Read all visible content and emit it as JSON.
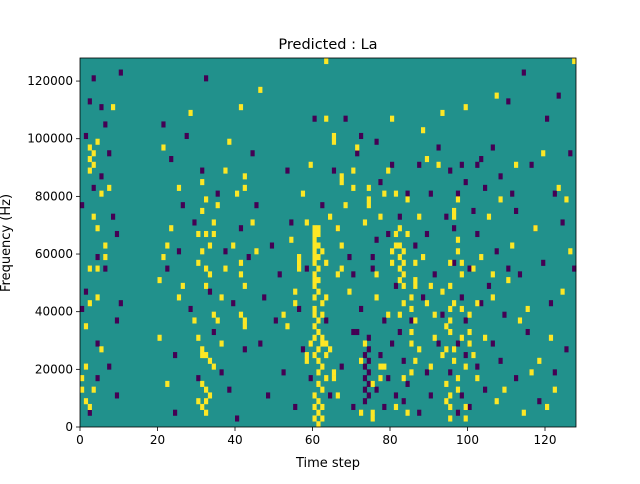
{
  "chart_data": {
    "type": "heatmap",
    "title": "Predicted : La",
    "xlabel": "Time step",
    "ylabel": "Frequency (Hz)",
    "xlim": [
      0,
      128
    ],
    "ylim": [
      0,
      128000
    ],
    "xticks": [
      0,
      20,
      40,
      60,
      80,
      100,
      120
    ],
    "yticks": [
      0,
      20000,
      40000,
      60000,
      80000,
      100000,
      120000
    ],
    "xtick_labels": [
      "0",
      "20",
      "40",
      "60",
      "80",
      "100",
      "120"
    ],
    "ytick_labels": [
      "0",
      "20000",
      "40000",
      "60000",
      "80000",
      "100000",
      "120000"
    ],
    "n_time_steps": 128,
    "n_freq_bins": 64,
    "value_levels": [
      -1,
      0,
      1
    ],
    "colors": {
      "background": "#21918c",
      "low": "#440154",
      "high": "#fde725"
    },
    "grid": false,
    "legend": "none",
    "cells_high": [
      [
        0,
        6
      ],
      [
        0,
        8
      ],
      [
        1,
        4
      ],
      [
        1,
        10
      ],
      [
        1,
        17
      ],
      [
        2,
        3
      ],
      [
        2,
        21
      ],
      [
        2,
        27
      ],
      [
        2,
        44
      ],
      [
        2,
        46
      ],
      [
        2,
        48
      ],
      [
        3,
        6
      ],
      [
        3,
        36
      ],
      [
        3,
        45
      ],
      [
        3,
        47
      ],
      [
        4,
        22
      ],
      [
        4,
        27
      ],
      [
        4,
        34
      ],
      [
        4,
        49
      ],
      [
        5,
        13
      ],
      [
        5,
        40
      ],
      [
        6,
        29
      ],
      [
        6,
        31
      ],
      [
        7,
        41
      ],
      [
        8,
        55
      ],
      [
        20,
        15
      ],
      [
        20,
        25
      ],
      [
        21,
        29
      ],
      [
        21,
        48
      ],
      [
        22,
        7
      ],
      [
        22,
        31
      ],
      [
        23,
        34
      ],
      [
        25,
        22
      ],
      [
        25,
        41
      ],
      [
        26,
        24
      ],
      [
        28,
        54
      ],
      [
        29,
        18
      ],
      [
        30,
        15
      ],
      [
        30,
        4
      ],
      [
        30,
        28
      ],
      [
        30,
        33
      ],
      [
        31,
        3
      ],
      [
        31,
        7
      ],
      [
        31,
        12
      ],
      [
        31,
        13
      ],
      [
        31,
        30
      ],
      [
        31,
        37
      ],
      [
        31,
        42
      ],
      [
        32,
        2
      ],
      [
        32,
        4
      ],
      [
        32,
        6
      ],
      [
        32,
        12
      ],
      [
        32,
        24
      ],
      [
        32,
        27
      ],
      [
        32,
        33
      ],
      [
        32,
        39
      ],
      [
        33,
        5
      ],
      [
        33,
        11
      ],
      [
        33,
        26
      ],
      [
        33,
        31
      ],
      [
        34,
        10
      ],
      [
        34,
        19
      ],
      [
        34,
        33
      ],
      [
        34,
        35
      ],
      [
        35,
        18
      ],
      [
        35,
        38
      ],
      [
        36,
        14
      ],
      [
        36,
        22
      ],
      [
        37,
        27
      ],
      [
        37,
        44
      ],
      [
        38,
        49
      ],
      [
        39,
        31
      ],
      [
        40,
        40
      ],
      [
        41,
        19
      ],
      [
        41,
        26
      ],
      [
        41,
        28
      ],
      [
        41,
        55
      ],
      [
        42,
        17
      ],
      [
        42,
        18
      ],
      [
        42,
        24
      ],
      [
        42,
        41
      ],
      [
        42,
        43
      ],
      [
        44,
        35
      ],
      [
        45,
        30
      ],
      [
        46,
        58
      ],
      [
        52,
        19
      ],
      [
        53,
        17
      ],
      [
        54,
        32
      ],
      [
        55,
        21
      ],
      [
        55,
        23
      ],
      [
        56,
        27
      ],
      [
        56,
        28
      ],
      [
        56,
        29
      ],
      [
        57,
        40
      ],
      [
        58,
        11
      ],
      [
        58,
        12
      ],
      [
        58,
        35
      ],
      [
        59,
        14
      ],
      [
        59,
        45
      ],
      [
        60,
        1
      ],
      [
        60,
        3
      ],
      [
        60,
        5
      ],
      [
        60,
        12
      ],
      [
        60,
        15
      ],
      [
        60,
        17
      ],
      [
        60,
        19
      ],
      [
        60,
        20
      ],
      [
        60,
        22
      ],
      [
        60,
        24
      ],
      [
        60,
        25
      ],
      [
        60,
        26
      ],
      [
        60,
        28
      ],
      [
        60,
        29
      ],
      [
        60,
        30
      ],
      [
        60,
        31
      ],
      [
        60,
        32
      ],
      [
        60,
        33
      ],
      [
        60,
        34
      ],
      [
        61,
        0
      ],
      [
        61,
        2
      ],
      [
        61,
        4
      ],
      [
        61,
        7
      ],
      [
        61,
        9
      ],
      [
        61,
        11
      ],
      [
        61,
        13
      ],
      [
        61,
        16
      ],
      [
        61,
        18
      ],
      [
        61,
        23
      ],
      [
        61,
        25
      ],
      [
        61,
        27
      ],
      [
        61,
        29
      ],
      [
        61,
        31
      ],
      [
        61,
        33
      ],
      [
        61,
        34
      ],
      [
        62,
        1
      ],
      [
        62,
        3
      ],
      [
        62,
        6
      ],
      [
        62,
        10
      ],
      [
        62,
        14
      ],
      [
        62,
        15
      ],
      [
        62,
        19
      ],
      [
        62,
        21
      ],
      [
        62,
        30
      ],
      [
        63,
        8
      ],
      [
        63,
        12
      ],
      [
        63,
        14
      ],
      [
        63,
        22
      ],
      [
        63,
        28
      ],
      [
        63,
        53
      ],
      [
        63,
        63
      ],
      [
        64,
        13
      ],
      [
        64,
        36
      ],
      [
        65,
        8
      ],
      [
        65,
        9
      ],
      [
        65,
        49
      ],
      [
        65,
        50
      ],
      [
        66,
        5
      ],
      [
        66,
        26
      ],
      [
        66,
        34
      ],
      [
        67,
        27
      ],
      [
        67,
        31
      ],
      [
        67,
        42
      ],
      [
        67,
        43
      ],
      [
        68,
        38
      ],
      [
        69,
        23
      ],
      [
        70,
        44
      ],
      [
        70,
        41
      ],
      [
        71,
        48
      ],
      [
        72,
        2
      ],
      [
        72,
        11
      ],
      [
        73,
        14
      ],
      [
        73,
        35
      ],
      [
        74,
        38
      ],
      [
        74,
        39
      ],
      [
        74,
        41
      ],
      [
        75,
        1
      ],
      [
        75,
        2
      ],
      [
        75,
        7
      ],
      [
        76,
        22
      ],
      [
        76,
        26
      ],
      [
        77,
        8
      ],
      [
        77,
        10
      ],
      [
        77,
        36
      ],
      [
        78,
        10
      ],
      [
        78,
        40
      ],
      [
        79,
        19
      ],
      [
        79,
        44
      ],
      [
        80,
        28
      ],
      [
        80,
        30
      ],
      [
        80,
        53
      ],
      [
        81,
        3
      ],
      [
        81,
        31
      ],
      [
        81,
        33
      ],
      [
        81,
        40
      ],
      [
        82,
        19
      ],
      [
        82,
        25
      ],
      [
        82,
        27
      ],
      [
        82,
        29
      ],
      [
        82,
        31
      ],
      [
        82,
        34
      ],
      [
        83,
        8
      ],
      [
        83,
        21
      ],
      [
        83,
        24
      ],
      [
        83,
        26
      ],
      [
        83,
        28
      ],
      [
        83,
        30
      ],
      [
        84,
        2
      ],
      [
        84,
        33
      ],
      [
        84,
        39
      ],
      [
        85,
        9
      ],
      [
        85,
        14
      ],
      [
        85,
        16
      ],
      [
        85,
        20
      ],
      [
        85,
        22
      ],
      [
        86,
        11
      ],
      [
        86,
        18
      ],
      [
        86,
        24
      ],
      [
        86,
        25
      ],
      [
        86,
        28
      ],
      [
        87,
        13
      ],
      [
        87,
        36
      ],
      [
        88,
        29
      ],
      [
        88,
        51
      ],
      [
        89,
        21
      ],
      [
        89,
        46
      ],
      [
        90,
        10
      ],
      [
        90,
        24
      ],
      [
        91,
        15
      ],
      [
        91,
        19
      ],
      [
        92,
        45
      ],
      [
        93,
        12
      ],
      [
        93,
        23
      ],
      [
        93,
        54
      ],
      [
        94,
        4
      ],
      [
        94,
        7
      ],
      [
        94,
        13
      ],
      [
        94,
        17
      ],
      [
        95,
        1
      ],
      [
        95,
        3
      ],
      [
        95,
        5
      ],
      [
        95,
        16
      ],
      [
        95,
        18
      ],
      [
        95,
        20
      ],
      [
        95,
        24
      ],
      [
        95,
        28
      ],
      [
        96,
        11
      ],
      [
        96,
        13
      ],
      [
        96,
        21
      ],
      [
        96,
        36
      ],
      [
        96,
        37
      ],
      [
        97,
        6
      ],
      [
        97,
        8
      ],
      [
        97,
        30
      ],
      [
        97,
        32
      ],
      [
        97,
        39
      ],
      [
        98,
        15
      ],
      [
        98,
        20
      ],
      [
        98,
        26
      ],
      [
        98,
        28
      ],
      [
        99,
        1
      ],
      [
        99,
        3
      ],
      [
        99,
        10
      ],
      [
        99,
        55
      ],
      [
        100,
        14
      ],
      [
        100,
        16
      ],
      [
        100,
        19
      ],
      [
        101,
        12
      ],
      [
        101,
        27
      ],
      [
        102,
        8
      ],
      [
        102,
        21
      ],
      [
        103,
        29
      ],
      [
        104,
        15
      ],
      [
        105,
        36
      ],
      [
        106,
        22
      ],
      [
        106,
        26
      ],
      [
        107,
        4
      ],
      [
        107,
        57
      ],
      [
        108,
        39
      ],
      [
        109,
        6
      ],
      [
        110,
        25
      ],
      [
        111,
        31
      ],
      [
        112,
        45
      ],
      [
        113,
        18
      ],
      [
        114,
        2
      ],
      [
        115,
        20
      ],
      [
        116,
        9
      ],
      [
        117,
        34
      ],
      [
        118,
        11
      ],
      [
        119,
        47
      ],
      [
        120,
        3
      ],
      [
        121,
        15
      ],
      [
        122,
        6
      ],
      [
        123,
        41
      ],
      [
        124,
        23
      ],
      [
        125,
        39
      ],
      [
        126,
        30
      ],
      [
        127,
        63
      ]
    ],
    "cells_low": [
      [
        0,
        20
      ],
      [
        0,
        38
      ],
      [
        1,
        23
      ],
      [
        1,
        50
      ],
      [
        2,
        2
      ],
      [
        2,
        56
      ],
      [
        3,
        60
      ],
      [
        3,
        41
      ],
      [
        4,
        8
      ],
      [
        4,
        14
      ],
      [
        4,
        29
      ],
      [
        5,
        43
      ],
      [
        5,
        55
      ],
      [
        6,
        27
      ],
      [
        6,
        52
      ],
      [
        7,
        10
      ],
      [
        7,
        47
      ],
      [
        8,
        36
      ],
      [
        9,
        5
      ],
      [
        9,
        18
      ],
      [
        9,
        33
      ],
      [
        10,
        21
      ],
      [
        10,
        61
      ],
      [
        21,
        52
      ],
      [
        22,
        27
      ],
      [
        23,
        46
      ],
      [
        24,
        2
      ],
      [
        24,
        12
      ],
      [
        25,
        30
      ],
      [
        26,
        38
      ],
      [
        27,
        50
      ],
      [
        28,
        20
      ],
      [
        29,
        35
      ],
      [
        30,
        8
      ],
      [
        31,
        44
      ],
      [
        32,
        60
      ],
      [
        33,
        23
      ],
      [
        34,
        16
      ],
      [
        35,
        40
      ],
      [
        36,
        9
      ],
      [
        37,
        30
      ],
      [
        38,
        6
      ],
      [
        39,
        21
      ],
      [
        40,
        1
      ],
      [
        41,
        34
      ],
      [
        42,
        13
      ],
      [
        43,
        29
      ],
      [
        44,
        47
      ],
      [
        45,
        38
      ],
      [
        46,
        14
      ],
      [
        47,
        22
      ],
      [
        48,
        5
      ],
      [
        49,
        31
      ],
      [
        50,
        18
      ],
      [
        51,
        26
      ],
      [
        52,
        9
      ],
      [
        53,
        44
      ],
      [
        54,
        35
      ],
      [
        55,
        3
      ],
      [
        56,
        20
      ],
      [
        57,
        13
      ],
      [
        58,
        27
      ],
      [
        59,
        8
      ],
      [
        60,
        53
      ],
      [
        62,
        38
      ],
      [
        63,
        18
      ],
      [
        64,
        5
      ],
      [
        65,
        44
      ],
      [
        66,
        34
      ],
      [
        67,
        10
      ],
      [
        68,
        53
      ],
      [
        69,
        29
      ],
      [
        70,
        3
      ],
      [
        70,
        16
      ],
      [
        70,
        26
      ],
      [
        71,
        16
      ],
      [
        71,
        47
      ],
      [
        72,
        20
      ],
      [
        72,
        50
      ],
      [
        73,
        4
      ],
      [
        73,
        6
      ],
      [
        73,
        8
      ],
      [
        73,
        10
      ],
      [
        73,
        12
      ],
      [
        74,
        5
      ],
      [
        74,
        7
      ],
      [
        74,
        9
      ],
      [
        74,
        11
      ],
      [
        74,
        13
      ],
      [
        74,
        15
      ],
      [
        75,
        27
      ],
      [
        75,
        29
      ],
      [
        76,
        6
      ],
      [
        76,
        32
      ],
      [
        76,
        49
      ],
      [
        77,
        12
      ],
      [
        77,
        42
      ],
      [
        78,
        3
      ],
      [
        78,
        18
      ],
      [
        79,
        8
      ],
      [
        79,
        33
      ],
      [
        80,
        14
      ],
      [
        80,
        45
      ],
      [
        81,
        5
      ],
      [
        81,
        24
      ],
      [
        82,
        16
      ],
      [
        82,
        36
      ],
      [
        83,
        4
      ],
      [
        83,
        11
      ],
      [
        84,
        7
      ],
      [
        84,
        40
      ],
      [
        85,
        18
      ],
      [
        86,
        31
      ],
      [
        87,
        2
      ],
      [
        87,
        45
      ],
      [
        88,
        22
      ],
      [
        89,
        9
      ],
      [
        89,
        33
      ],
      [
        90,
        5
      ],
      [
        90,
        40
      ],
      [
        91,
        26
      ],
      [
        92,
        14
      ],
      [
        92,
        48
      ],
      [
        93,
        19
      ],
      [
        94,
        36
      ],
      [
        95,
        9
      ],
      [
        95,
        44
      ],
      [
        96,
        28
      ],
      [
        96,
        34
      ],
      [
        97,
        2
      ],
      [
        97,
        14
      ],
      [
        97,
        40
      ],
      [
        98,
        5
      ],
      [
        98,
        22
      ],
      [
        98,
        45
      ],
      [
        99,
        12
      ],
      [
        99,
        18
      ],
      [
        99,
        42
      ],
      [
        100,
        3
      ],
      [
        100,
        27
      ],
      [
        101,
        37
      ],
      [
        102,
        10
      ],
      [
        102,
        33
      ],
      [
        102,
        45
      ],
      [
        103,
        21
      ],
      [
        103,
        46
      ],
      [
        104,
        6
      ],
      [
        104,
        41
      ],
      [
        105,
        24
      ],
      [
        106,
        14
      ],
      [
        106,
        48
      ],
      [
        107,
        30
      ],
      [
        108,
        11
      ],
      [
        108,
        43
      ],
      [
        109,
        19
      ],
      [
        110,
        27
      ],
      [
        110,
        56
      ],
      [
        111,
        40
      ],
      [
        112,
        8
      ],
      [
        112,
        37
      ],
      [
        113,
        26
      ],
      [
        114,
        61
      ],
      [
        115,
        16
      ],
      [
        116,
        45
      ],
      [
        117,
        34
      ],
      [
        118,
        4
      ],
      [
        119,
        28
      ],
      [
        120,
        53
      ],
      [
        121,
        21
      ],
      [
        122,
        9
      ],
      [
        122,
        40
      ],
      [
        123,
        57
      ],
      [
        124,
        35
      ],
      [
        125,
        13
      ],
      [
        126,
        47
      ],
      [
        127,
        27
      ]
    ]
  }
}
